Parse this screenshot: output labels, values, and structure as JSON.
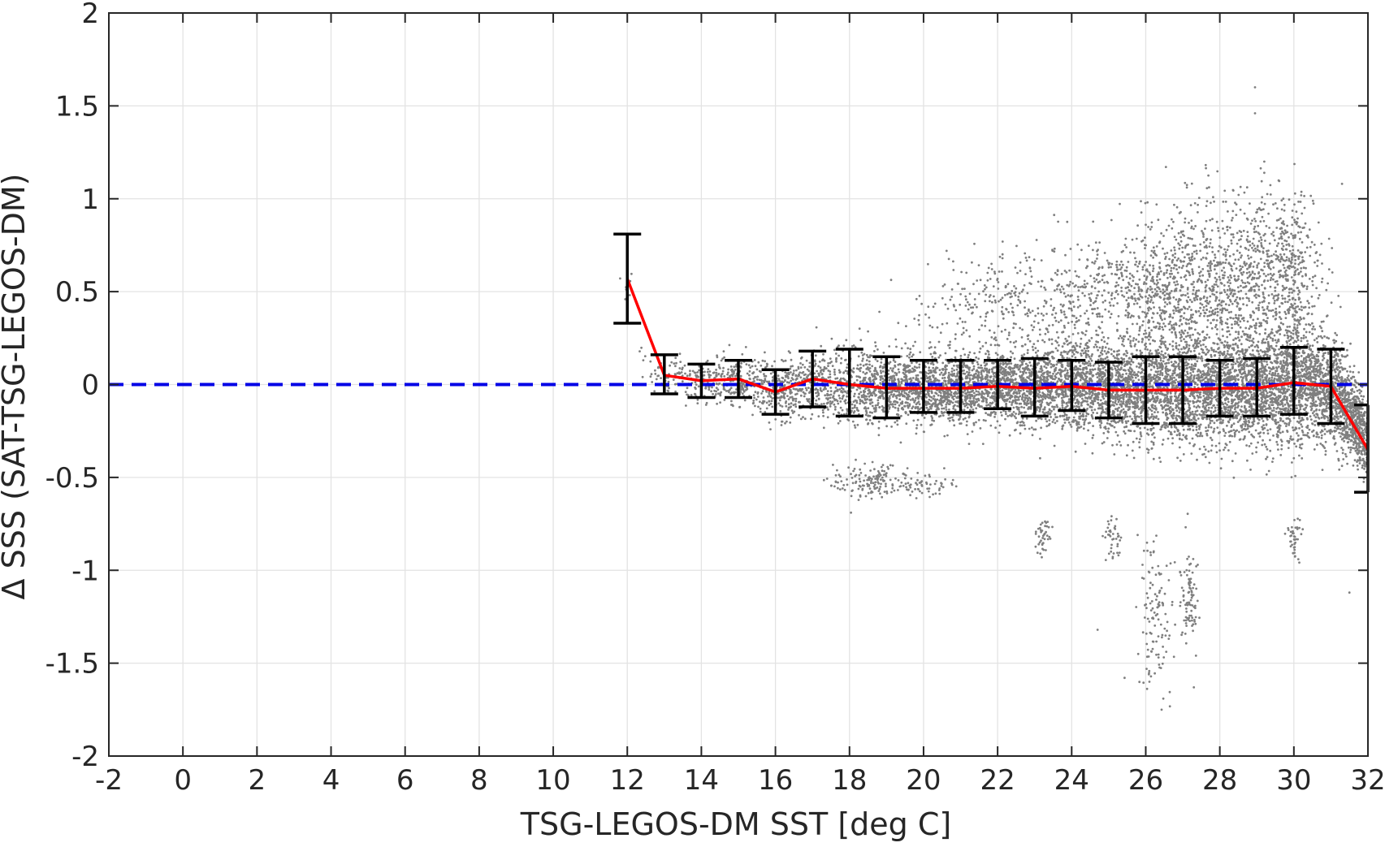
{
  "chart_data": {
    "type": "scatter",
    "title": "",
    "xlabel": "TSG-LEGOS-DM SST [deg C]",
    "ylabel": "Δ SSS (SAT-TSG-LEGOS-DM)",
    "xlim": [
      -2,
      32
    ],
    "ylim": [
      -2,
      2
    ],
    "x_ticks": [
      -2,
      0,
      2,
      4,
      6,
      8,
      10,
      12,
      14,
      16,
      18,
      20,
      22,
      24,
      26,
      28,
      30,
      32
    ],
    "y_ticks": [
      -2,
      -1.5,
      -1,
      -0.5,
      0,
      0.5,
      1,
      1.5,
      2
    ],
    "x_tick_labels": [
      "-2",
      "0",
      "2",
      "4",
      "6",
      "8",
      "10",
      "12",
      "14",
      "16",
      "18",
      "20",
      "22",
      "24",
      "26",
      "28",
      "30",
      "32"
    ],
    "y_tick_labels": [
      "-2",
      "-1.5",
      "-1",
      "-0.5",
      "0",
      "0.5",
      "1",
      "1.5",
      "2"
    ],
    "grid": true,
    "legend": "none",
    "zero_line": {
      "y": 0,
      "style": "dashed",
      "color": "#0000e6"
    },
    "colors": {
      "scatter": "#7f7f7f",
      "mean_line": "#ff0000",
      "error_bars": "#000000",
      "zero_line": "#0000e6",
      "grid": "#e3e3e3",
      "axes": "#262626"
    },
    "binned_stats": {
      "x": [
        12,
        13,
        14,
        15,
        16,
        17,
        18,
        19,
        20,
        21,
        22,
        23,
        24,
        25,
        26,
        27,
        28,
        29,
        30,
        31,
        32
      ],
      "mean": [
        0.57,
        0.05,
        0.02,
        0.03,
        -0.04,
        0.03,
        0.0,
        -0.02,
        -0.02,
        -0.02,
        -0.01,
        -0.02,
        -0.01,
        -0.03,
        -0.03,
        -0.03,
        -0.02,
        -0.02,
        0.01,
        -0.01,
        -0.35
      ],
      "lower": [
        0.33,
        -0.05,
        -0.07,
        -0.07,
        -0.16,
        -0.12,
        -0.17,
        -0.18,
        -0.15,
        -0.15,
        -0.13,
        -0.17,
        -0.14,
        -0.18,
        -0.21,
        -0.21,
        -0.17,
        -0.17,
        -0.16,
        -0.21,
        -0.58
      ],
      "upper": [
        0.81,
        0.16,
        0.11,
        0.13,
        0.08,
        0.18,
        0.19,
        0.15,
        0.13,
        0.13,
        0.13,
        0.14,
        0.13,
        0.12,
        0.15,
        0.15,
        0.13,
        0.14,
        0.2,
        0.19,
        -0.11
      ]
    },
    "scatter_envelope": {
      "x": [
        12,
        12.5,
        13,
        14,
        15,
        16,
        17,
        18,
        19,
        20,
        21,
        22,
        23,
        24,
        25,
        26,
        27,
        28,
        29,
        30,
        31,
        32
      ],
      "center": [
        0.5,
        0.1,
        0.04,
        0.02,
        0.02,
        -0.02,
        0.0,
        0.0,
        -0.02,
        -0.02,
        -0.02,
        -0.01,
        -0.02,
        -0.01,
        -0.03,
        -0.03,
        -0.03,
        -0.02,
        -0.02,
        0.0,
        -0.02,
        -0.3
      ],
      "spread": [
        0.06,
        0.1,
        0.1,
        0.1,
        0.11,
        0.14,
        0.16,
        0.2,
        0.17,
        0.17,
        0.16,
        0.17,
        0.18,
        0.2,
        0.22,
        0.24,
        0.26,
        0.26,
        0.27,
        0.3,
        0.25,
        0.18
      ]
    },
    "scatter_clusters": [
      {
        "x": 18.6,
        "y": -0.52,
        "spread_x": 0.5,
        "spread_y": 0.05,
        "n": 140
      },
      {
        "x": 20.0,
        "y": -0.55,
        "spread_x": 0.4,
        "spread_y": 0.03,
        "n": 60
      },
      {
        "x": 23.2,
        "y": -0.83,
        "spread_x": 0.12,
        "spread_y": 0.05,
        "n": 40
      },
      {
        "x": 26.2,
        "y": -1.2,
        "spread_x": 0.25,
        "spread_y": 0.22,
        "n": 120
      },
      {
        "x": 27.2,
        "y": -1.15,
        "spread_x": 0.12,
        "spread_y": 0.12,
        "n": 90
      },
      {
        "x": 30.0,
        "y": -0.82,
        "spread_x": 0.1,
        "spread_y": 0.06,
        "n": 40
      },
      {
        "x": 25.1,
        "y": -0.82,
        "spread_x": 0.12,
        "spread_y": 0.08,
        "n": 40
      },
      {
        "x": 28.2,
        "y": 0.55,
        "spread_x": 0.8,
        "spread_y": 0.22,
        "n": 700
      },
      {
        "x": 29.8,
        "y": 0.6,
        "spread_x": 0.5,
        "spread_y": 0.22,
        "n": 450
      },
      {
        "x": 22.3,
        "y": 0.4,
        "spread_x": 1.2,
        "spread_y": 0.15,
        "n": 350
      },
      {
        "x": 25.0,
        "y": 0.5,
        "spread_x": 0.9,
        "spread_y": 0.15,
        "n": 300
      },
      {
        "x": 26.5,
        "y": 0.48,
        "spread_x": 0.6,
        "spread_y": 0.2,
        "n": 400
      }
    ],
    "scatter_outliers": [
      {
        "x": 28.95,
        "y": 1.6
      },
      {
        "x": 28.95,
        "y": 1.46
      },
      {
        "x": 29.2,
        "y": 1.2
      },
      {
        "x": 31.3,
        "y": 1.08
      },
      {
        "x": 31.5,
        "y": -1.12
      },
      {
        "x": 26.1,
        "y": -1.6
      },
      {
        "x": 27.3,
        "y": -1.63
      },
      {
        "x": 24.7,
        "y": -1.32
      }
    ]
  }
}
